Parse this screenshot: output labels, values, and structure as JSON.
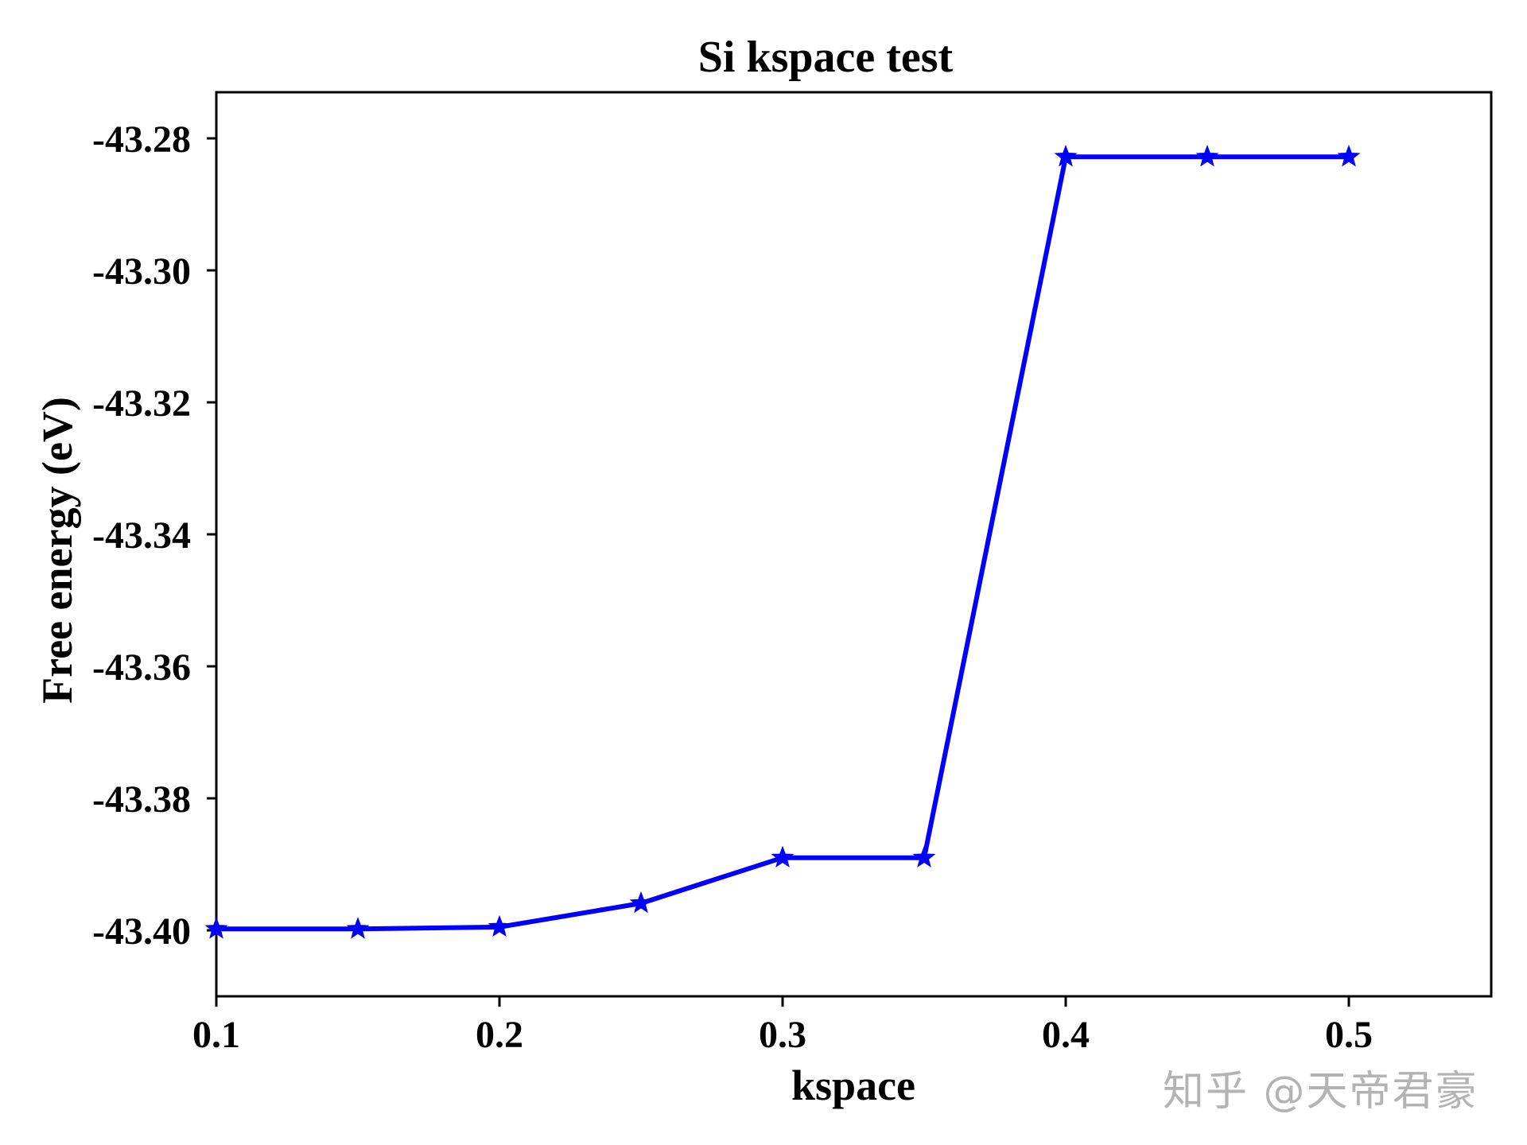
{
  "chart_data": {
    "type": "line",
    "title": "Si kspace test",
    "xlabel": "kspace",
    "ylabel": "Free energy (eV)",
    "x": [
      0.1,
      0.15,
      0.2,
      0.25,
      0.3,
      0.35,
      0.4,
      0.45,
      0.5
    ],
    "series": [
      {
        "name": "Free energy",
        "color": "#0000ff",
        "marker": "star",
        "values": [
          -43.3998,
          -43.3998,
          -43.3995,
          -43.3959,
          -43.389,
          -43.389,
          -43.2828,
          -43.2828,
          -43.2828
        ]
      }
    ],
    "xticks": [
      "0.1",
      "0.2",
      "0.3",
      "0.4",
      "0.5"
    ],
    "yticks": [
      "-43.28",
      "-43.30",
      "-43.32",
      "-43.34",
      "-43.36",
      "-43.38",
      "-43.40"
    ],
    "xlim": [
      0.1,
      0.55
    ],
    "ylim": [
      -43.41,
      -43.273
    ],
    "grid": false,
    "legend": null
  },
  "watermark": "知乎 @天帝君豪"
}
